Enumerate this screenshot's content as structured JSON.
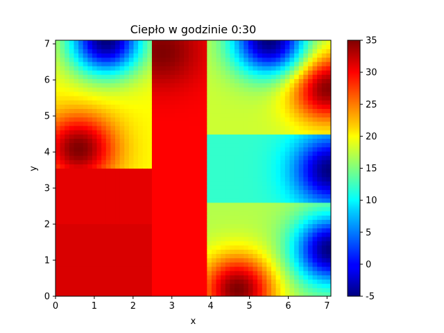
{
  "chart_data": {
    "type": "heatmap",
    "title": "Ciepło w godzinie 0:30",
    "xlabel": "x",
    "ylabel": "y",
    "xlim": [
      0,
      7.1
    ],
    "ylim": [
      0,
      7.1
    ],
    "xticks": [
      "0",
      "1",
      "2",
      "3",
      "4",
      "5",
      "6",
      "7"
    ],
    "yticks": [
      "0",
      "1",
      "2",
      "3",
      "4",
      "5",
      "6",
      "7"
    ],
    "colormap": "jet",
    "colorbar": {
      "min": -5,
      "max": 35,
      "ticks": [
        "-5",
        "0",
        "5",
        "10",
        "15",
        "20",
        "25",
        "30",
        "35"
      ]
    },
    "regions": [
      {
        "name": "lower-left room",
        "x": [
          0,
          2.45
        ],
        "y": [
          0,
          2.05
        ],
        "value": 31.5
      },
      {
        "name": "left-middle room",
        "x": [
          0,
          2.45
        ],
        "y": [
          2.05,
          3.55
        ],
        "value": 31
      },
      {
        "name": "left-upper room",
        "x": [
          0,
          2.45
        ],
        "y": [
          3.55,
          7.1
        ],
        "value": 20
      },
      {
        "name": "center column",
        "x": [
          2.45,
          3.95
        ],
        "y": [
          0,
          7.1
        ],
        "value": 30
      },
      {
        "name": "lower-right room",
        "x": [
          3.95,
          7.1
        ],
        "y": [
          0,
          2.65
        ],
        "value": 17
      },
      {
        "name": "center-right room",
        "x": [
          3.95,
          7.1
        ],
        "y": [
          2.65,
          4.55
        ],
        "value": 12
      },
      {
        "name": "upper-right room",
        "x": [
          3.95,
          7.1
        ],
        "y": [
          4.55,
          7.1
        ],
        "value": 18
      }
    ],
    "hot_spots": [
      {
        "x": 0.6,
        "y": 4.1,
        "value": 35
      },
      {
        "x": 4.7,
        "y": 0.2,
        "value": 35
      },
      {
        "x": 7.0,
        "y": 5.8,
        "value": 35
      },
      {
        "x": 2.75,
        "y": 6.8,
        "value": 35
      }
    ],
    "cold_spots": [
      {
        "x": 1.3,
        "y": 7.1,
        "value": -5
      },
      {
        "x": 5.5,
        "y": 7.1,
        "value": -5
      },
      {
        "x": 7.1,
        "y": 3.5,
        "value": -5
      },
      {
        "x": 7.1,
        "y": 1.3,
        "value": -5
      }
    ]
  }
}
